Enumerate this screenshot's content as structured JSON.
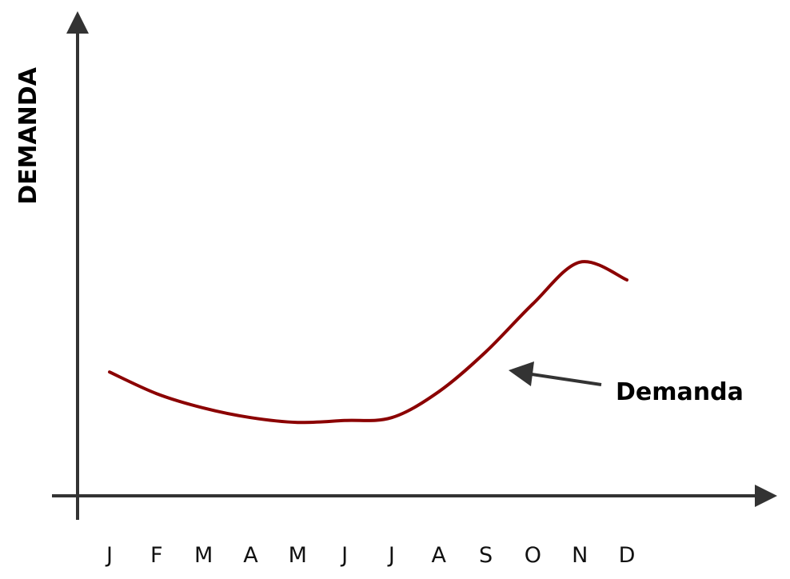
{
  "chart_data": {
    "type": "line",
    "y_label": "DEMANDA",
    "categories": [
      "J",
      "F",
      "M",
      "A",
      "M",
      "J",
      "J",
      "A",
      "S",
      "O",
      "N",
      "D"
    ],
    "series": [
      {
        "name": "Demanda",
        "color": "#8b0000",
        "values": [
          25.8,
          21.3,
          18.3,
          16.3,
          15.3,
          15.7,
          16.3,
          21.7,
          30,
          40,
          48.7,
          45
        ]
      }
    ],
    "ylim": [
      0,
      100
    ]
  }
}
